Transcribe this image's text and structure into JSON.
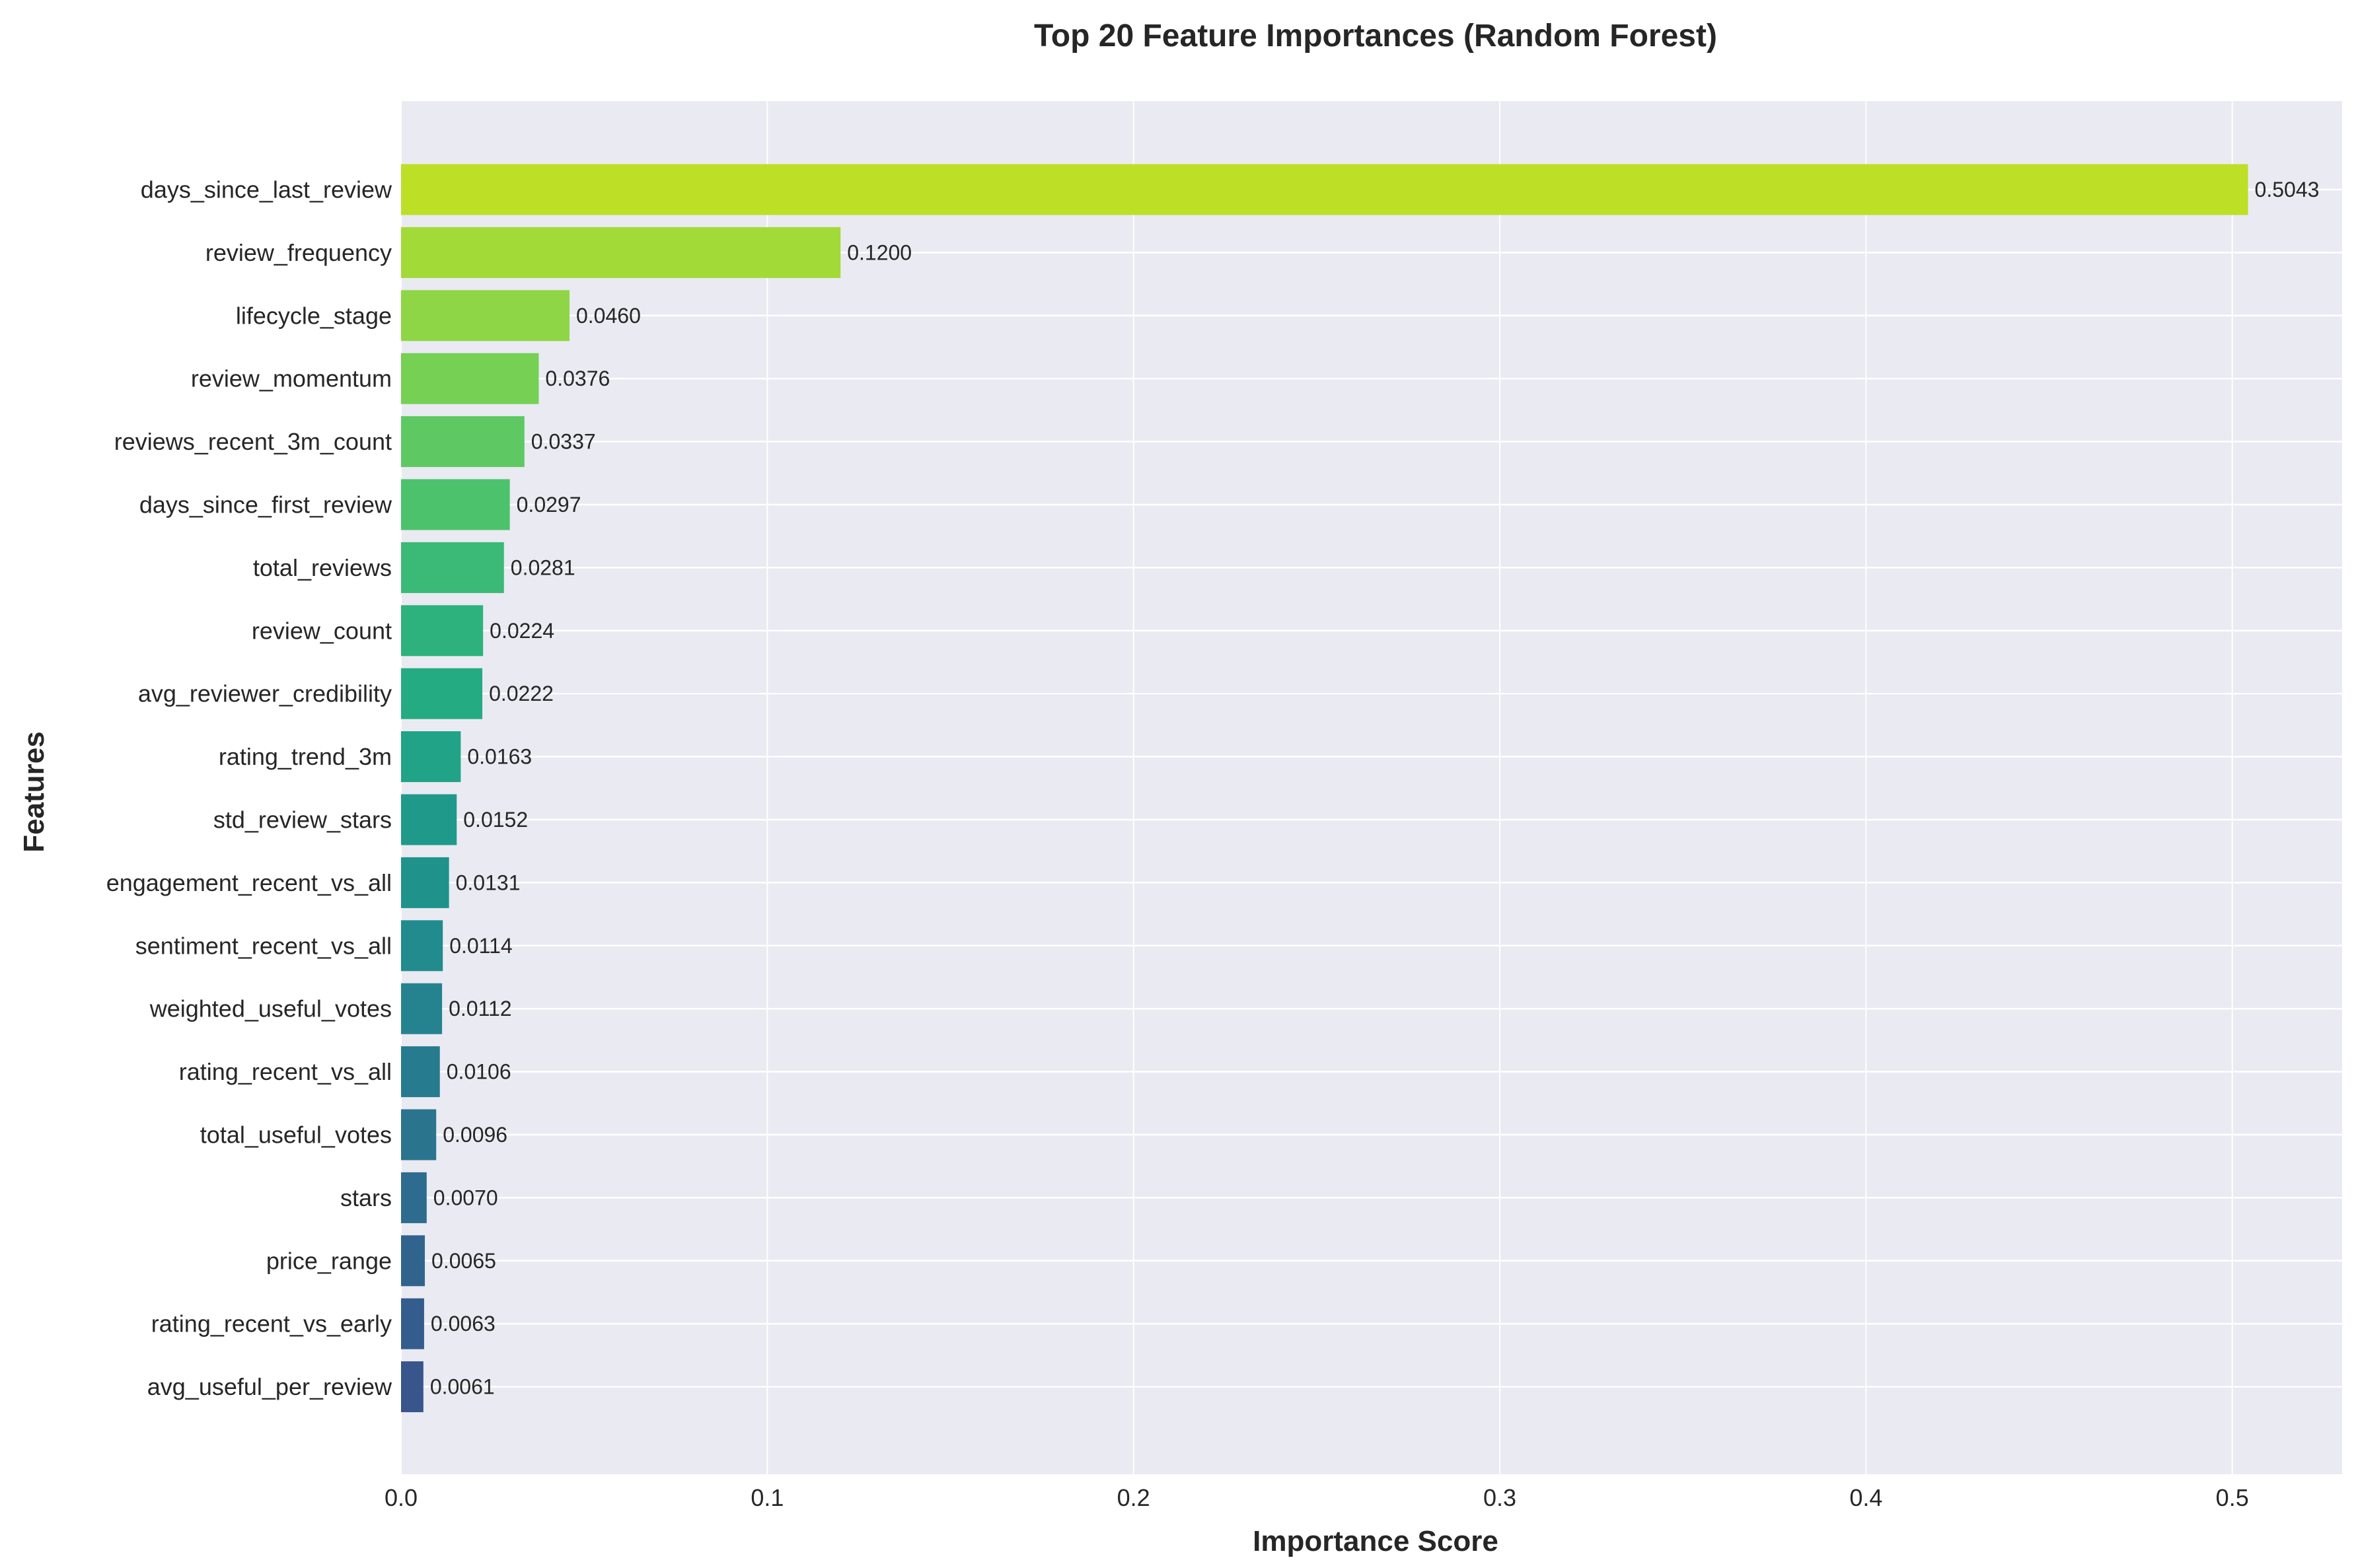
{
  "chart_data": {
    "type": "bar",
    "orientation": "horizontal",
    "title": "Top 20 Feature Importances (Random Forest)",
    "xlabel": "Importance Score",
    "ylabel": "Features",
    "xlim": [
      0,
      0.53
    ],
    "xticks": [
      0.0,
      0.1,
      0.2,
      0.3,
      0.4,
      0.5
    ],
    "xtick_labels": [
      "0.0",
      "0.1",
      "0.2",
      "0.3",
      "0.4",
      "0.5"
    ],
    "grid": true,
    "background_color": "#EAEAF2",
    "grid_color": "#FFFFFF",
    "colormap": "viridis",
    "categories": [
      "days_since_last_review",
      "review_frequency",
      "lifecycle_stage",
      "review_momentum",
      "reviews_recent_3m_count",
      "days_since_first_review",
      "total_reviews",
      "review_count",
      "avg_reviewer_credibility",
      "rating_trend_3m",
      "std_review_stars",
      "engagement_recent_vs_all",
      "sentiment_recent_vs_all",
      "weighted_useful_votes",
      "rating_recent_vs_all",
      "total_useful_votes",
      "stars",
      "price_range",
      "rating_recent_vs_early",
      "avg_useful_per_review"
    ],
    "values": [
      0.5043,
      0.12,
      0.046,
      0.0376,
      0.0337,
      0.0297,
      0.0281,
      0.0224,
      0.0222,
      0.0163,
      0.0152,
      0.0131,
      0.0114,
      0.0112,
      0.0106,
      0.0096,
      0.007,
      0.0065,
      0.0063,
      0.0061
    ],
    "value_labels": [
      "0.5043",
      "0.1200",
      "0.0460",
      "0.0376",
      "0.0337",
      "0.0297",
      "0.0281",
      "0.0224",
      "0.0222",
      "0.0163",
      "0.0152",
      "0.0131",
      "0.0114",
      "0.0112",
      "0.0106",
      "0.0096",
      "0.0070",
      "0.0065",
      "0.0063",
      "0.0061"
    ],
    "colors": [
      "#BDDF26",
      "#A2DA37",
      "#8ED645",
      "#75D054",
      "#5EC962",
      "#4CC26C",
      "#3ABA76",
      "#2DB27D",
      "#25AB82",
      "#20A386",
      "#1F9A8A",
      "#20928C",
      "#228B8D",
      "#24838E",
      "#277B8E",
      "#2A748E",
      "#2D6C8E",
      "#31648D",
      "#345D8D",
      "#38558C"
    ]
  }
}
